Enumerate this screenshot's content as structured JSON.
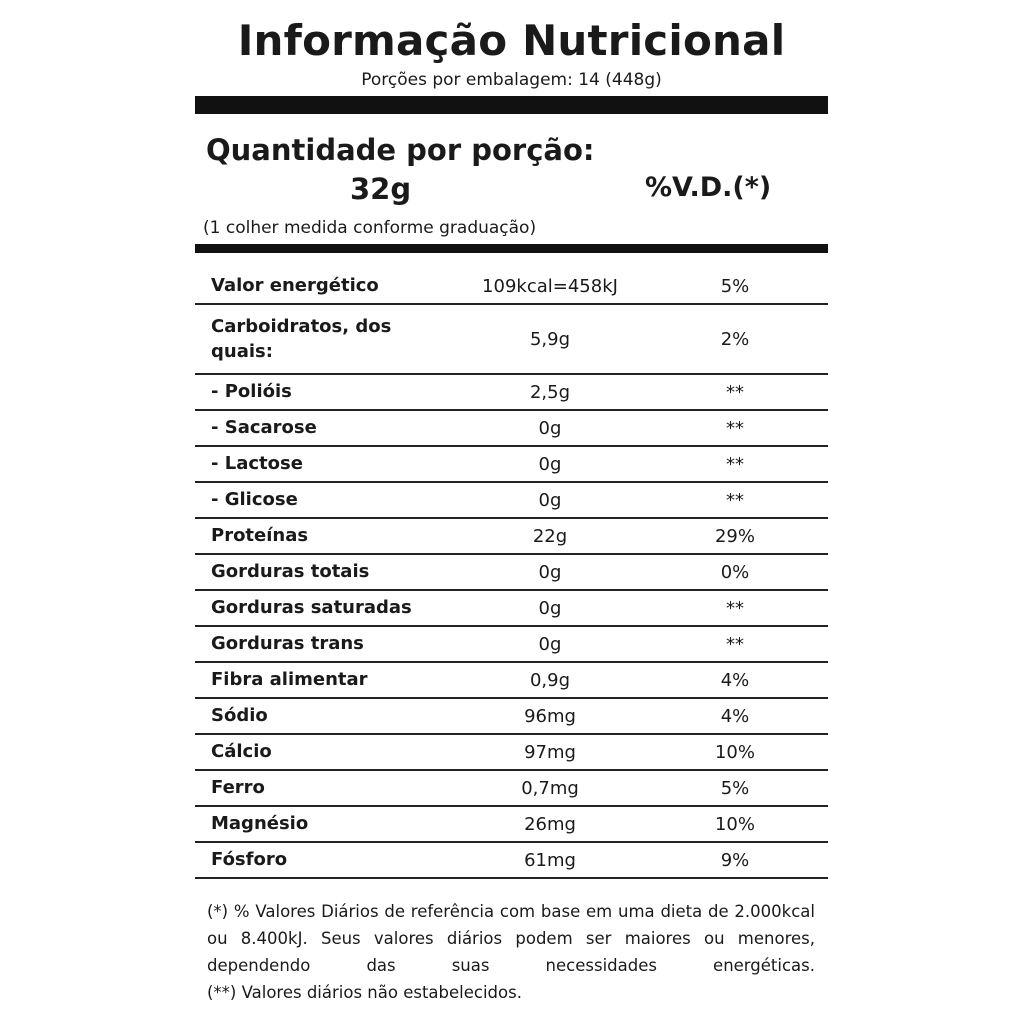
{
  "title": "Informação Nutricional",
  "servings_per_package": "Porções por embalagem: 14 (448g)",
  "serving": {
    "heading": "Quantidade por porção:",
    "amount": "32g",
    "dv_heading": "%V.D.(*)",
    "measure": "(1 colher medida conforme graduação)"
  },
  "rows": [
    {
      "name": "Valor energético",
      "amount": "109kcal=458kJ",
      "dv": "5%"
    },
    {
      "name": "Carboidratos, dos quais:",
      "amount": "5,9g",
      "dv": "2%"
    },
    {
      "name": "- Polióis",
      "amount": "2,5g",
      "dv": "**"
    },
    {
      "name": "- Sacarose",
      "amount": "0g",
      "dv": "**"
    },
    {
      "name": "- Lactose",
      "amount": "0g",
      "dv": "**"
    },
    {
      "name": "- Glicose",
      "amount": "0g",
      "dv": "**"
    },
    {
      "name": "Proteínas",
      "amount": "22g",
      "dv": "29%"
    },
    {
      "name": "Gorduras totais",
      "amount": "0g",
      "dv": "0%"
    },
    {
      "name": "Gorduras saturadas",
      "amount": "0g",
      "dv": "**"
    },
    {
      "name": "Gorduras trans",
      "amount": "0g",
      "dv": "**"
    },
    {
      "name": "Fibra alimentar",
      "amount": "0,9g",
      "dv": "4%"
    },
    {
      "name": "Sódio",
      "amount": "96mg",
      "dv": "4%"
    },
    {
      "name": "Cálcio",
      "amount": "97mg",
      "dv": "10%"
    },
    {
      "name": "Ferro",
      "amount": "0,7mg",
      "dv": "5%"
    },
    {
      "name": "Magnésio",
      "amount": "26mg",
      "dv": "10%"
    },
    {
      "name": "Fósforo",
      "amount": "61mg",
      "dv": "9%"
    }
  ],
  "footnotes": [
    "(*) % Valores Diários de referência com base em uma dieta de 2.000kcal ou 8.400kJ. Seus valores diários podem ser maiores ou menores, dependendo das suas necessidades energéticas.",
    "(**) Valores diários não estabelecidos."
  ]
}
